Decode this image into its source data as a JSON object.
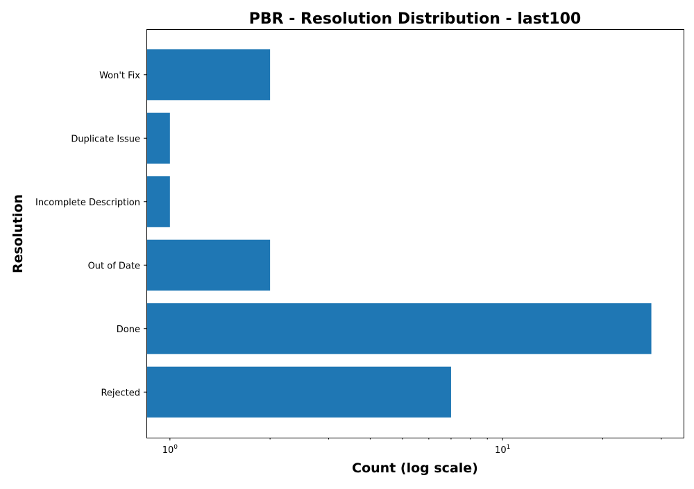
{
  "chart_data": {
    "type": "bar",
    "orientation": "horizontal",
    "title": "PBR - Resolution Distribution - last100",
    "xlabel": "Count (log scale)",
    "ylabel": "Resolution",
    "x_scale": "log",
    "xlim": [
      0.85,
      35
    ],
    "categories": [
      "Rejected",
      "Done",
      "Out of Date",
      "Incomplete Description",
      "Duplicate Issue",
      "Won't Fix"
    ],
    "values": [
      7,
      28,
      2,
      1,
      1,
      2
    ],
    "bar_color": "#1f77b4",
    "grid": false,
    "x_major_ticks": [
      {
        "value": 1,
        "base": "10",
        "exp": "0"
      },
      {
        "value": 10,
        "base": "10",
        "exp": "1"
      }
    ],
    "x_minor_ticks": [
      2,
      3,
      4,
      5,
      6,
      7,
      8,
      9,
      20,
      30
    ]
  }
}
